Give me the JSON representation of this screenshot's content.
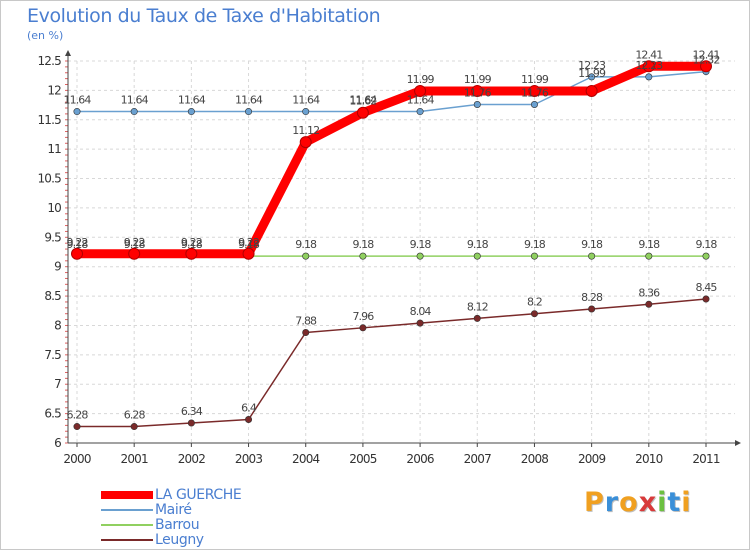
{
  "header": {
    "title": "Evolution du Taux de Taxe d'Habitation",
    "subtitle": "(en %)"
  },
  "logo": {
    "letters": [
      "P",
      "r",
      "o",
      "x",
      "i",
      "t",
      "i"
    ],
    "colors": [
      "#f0a020",
      "#3a8fd8",
      "#f0a020",
      "#d83a3a",
      "#6cc040",
      "#3a8fd8",
      "#f0a020"
    ]
  },
  "chart_data": {
    "type": "line",
    "title": "Evolution du Taux de Taxe d'Habitation",
    "ylabel": "(en %)",
    "xlabel": "",
    "categories": [
      "2000",
      "2001",
      "2002",
      "2003",
      "2004",
      "2005",
      "2006",
      "2007",
      "2008",
      "2009",
      "2010",
      "2011"
    ],
    "ylim": [
      6,
      12.5
    ],
    "yticks": [
      "6",
      "6.5",
      "7",
      "7.5",
      "8",
      "8.5",
      "9",
      "9.5",
      "10",
      "10.5",
      "11",
      "11.5",
      "12",
      "12.5"
    ],
    "grid": true,
    "series": [
      {
        "name": "LA GUERCHE",
        "color": "#ff0000",
        "width": 9,
        "values": [
          9.22,
          9.22,
          9.22,
          9.22,
          11.12,
          11.62,
          11.99,
          11.99,
          11.99,
          11.99,
          12.41,
          12.41
        ],
        "labels": [
          "9.22",
          "9.22",
          "9.22",
          "9.22",
          "11.12",
          "11.62",
          "11.99",
          "11.99",
          "11.99",
          "",
          "12.41",
          "12.41"
        ]
      },
      {
        "name": "Mairé",
        "color": "#6aa0d0",
        "width": 1.5,
        "values": [
          11.64,
          11.64,
          11.64,
          11.64,
          11.64,
          11.64,
          11.64,
          11.76,
          11.76,
          12.23,
          12.23,
          12.32
        ],
        "labels": [
          "11.64",
          "11.64",
          "11.64",
          "11.64",
          "11.64",
          "11.64",
          "11.64",
          "11.76",
          "11.76",
          "12.23",
          "12.23",
          "12.32"
        ]
      },
      {
        "name": "Barrou",
        "color": "#90d060",
        "width": 1.5,
        "values": [
          9.18,
          9.18,
          9.18,
          9.18,
          9.18,
          9.18,
          9.18,
          9.18,
          9.18,
          9.18,
          9.18,
          9.18
        ],
        "labels": [
          "9.18",
          "9.18",
          "9.18",
          "9.18",
          "9.18",
          "9.18",
          "9.18",
          "9.18",
          "9.18",
          "9.18",
          "9.18",
          "9.18"
        ]
      },
      {
        "name": "Leugny",
        "color": "#7a2a2a",
        "width": 1.5,
        "values": [
          6.28,
          6.28,
          6.34,
          6.4,
          7.88,
          7.96,
          8.04,
          8.12,
          8.2,
          8.28,
          8.36,
          8.45
        ],
        "labels": [
          "6.28",
          "6.28",
          "6.34",
          "6.4",
          "7.88",
          "7.96",
          "8.04",
          "8.12",
          "8.2",
          "8.28",
          "8.36",
          "8.45"
        ]
      }
    ],
    "extra_labels": [
      {
        "series": "LA GUERCHE",
        "index": 9,
        "text": "11.99"
      }
    ],
    "legend": {
      "position": "bottom-left",
      "entries": [
        "LA GUERCHE",
        "Mairé",
        "Barrou",
        "Leugny"
      ]
    }
  }
}
